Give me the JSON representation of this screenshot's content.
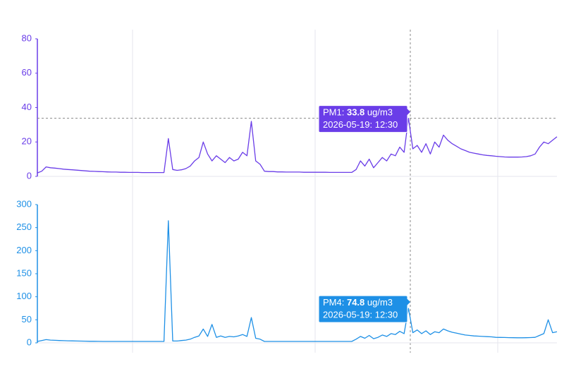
{
  "chart_data": [
    {
      "type": "line",
      "color": "#6a3de8",
      "ylim": [
        0,
        80
      ],
      "yticks": [
        0,
        20,
        40,
        60,
        80
      ],
      "values": [
        2,
        3,
        5.5,
        5,
        4.8,
        4.5,
        4.2,
        4,
        3.8,
        3.6,
        3.4,
        3.2,
        3,
        2.9,
        2.8,
        2.7,
        2.6,
        2.5,
        2.5,
        2.4,
        2.4,
        2.3,
        2.3,
        2.3,
        2.2,
        2.2,
        2.2,
        2.2,
        2.2,
        2.2,
        22,
        4,
        3.5,
        3.8,
        4.5,
        6,
        9,
        11,
        20,
        13,
        9,
        12,
        10,
        8,
        11,
        9,
        10,
        14,
        12,
        32,
        9,
        7,
        3,
        2.8,
        2.8,
        2.6,
        2.6,
        2.5,
        2.5,
        2.5,
        2.5,
        2.4,
        2.4,
        2.4,
        2.4,
        2.4,
        2.4,
        2.3,
        2.3,
        2.3,
        2.3,
        2.3,
        2.3,
        4,
        9,
        6,
        10,
        5,
        8,
        11,
        9,
        13,
        12,
        17,
        14,
        33.8,
        16,
        18,
        14,
        19,
        13,
        20,
        17,
        24,
        21,
        19,
        17.5,
        16,
        15,
        14,
        13.5,
        13,
        12.5,
        12.2,
        12,
        11.7,
        11.5,
        11.3,
        11.2,
        11.2,
        11.2,
        11.3,
        11.5,
        12,
        13,
        17,
        20,
        19,
        21,
        23
      ],
      "tooltip": {
        "label": "PM1:",
        "unit": "ug/m3",
        "time": "2026-05-19: 12:30"
      }
    },
    {
      "type": "line",
      "color": "#1e90e6",
      "ylim": [
        0,
        300
      ],
      "yticks": [
        0,
        50,
        100,
        150,
        200,
        250,
        300
      ],
      "values": [
        3,
        5,
        7,
        6,
        5.5,
        5,
        4.8,
        4.5,
        4.3,
        4,
        3.8,
        3.6,
        3.4,
        3.3,
        3.2,
        3.1,
        3,
        3,
        3,
        3,
        3,
        3,
        3,
        3,
        3,
        3,
        3,
        3,
        3,
        3,
        265,
        4,
        4,
        5,
        6,
        8,
        12,
        15,
        30,
        14,
        40,
        12,
        15,
        12,
        14,
        13,
        15,
        18,
        14,
        55,
        10,
        8,
        3,
        3,
        3,
        3,
        3,
        3,
        3,
        3,
        3,
        3,
        3,
        3,
        3,
        3,
        3,
        3,
        3,
        3,
        3,
        3,
        3,
        8,
        14,
        10,
        16,
        9,
        12,
        17,
        14,
        20,
        18,
        25,
        20,
        74.8,
        22,
        28,
        20,
        26,
        18,
        24,
        22,
        30,
        26,
        23,
        21,
        19,
        17,
        16,
        15,
        14.5,
        14,
        13.5,
        13,
        12,
        11.8,
        11.6,
        11.4,
        11.2,
        11,
        11,
        11.2,
        11.5,
        12,
        16,
        20,
        50,
        22,
        24
      ],
      "tooltip": {
        "label": "PM4:",
        "unit": "ug/m3",
        "time": "2026-05-19: 12:30"
      }
    }
  ]
}
